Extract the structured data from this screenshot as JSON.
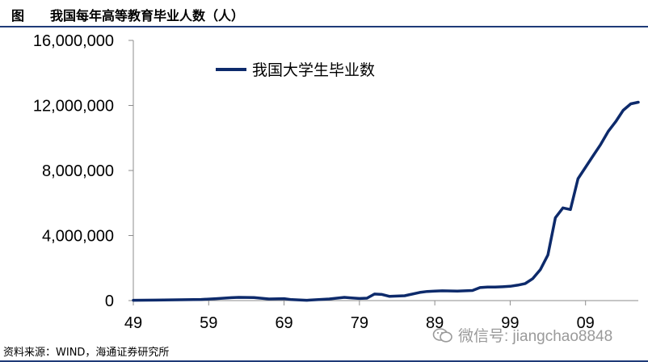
{
  "figure": {
    "label": "图",
    "title": "我国每年高等教育毕业人数（人）"
  },
  "source": "资料来源：WIND，海通证券研究所",
  "watermark": {
    "icon": "wechat-icon",
    "text": "微信号: jiangchao8848"
  },
  "colors": {
    "series": "#0d2a6b",
    "frame": "#1f3b78",
    "axis": "#8c8c8c"
  },
  "chart_data": {
    "type": "line",
    "title": "",
    "xlabel": "",
    "ylabel": "",
    "xlim": [
      1949,
      2016
    ],
    "ylim": [
      0,
      16000000
    ],
    "grid": false,
    "legend_position": "top-left",
    "x_ticks": [
      1949,
      1959,
      1969,
      1979,
      1989,
      1999,
      2009
    ],
    "x_tick_labels": [
      "49",
      "59",
      "69",
      "79",
      "89",
      "99",
      "09"
    ],
    "y_ticks": [
      0,
      4000000,
      8000000,
      12000000,
      16000000
    ],
    "y_tick_labels": [
      "0",
      "4,000,000",
      "8,000,000",
      "12,000,000",
      "16,000,000"
    ],
    "series": [
      {
        "name": "我国大学生毕业数",
        "x": [
          1949,
          1952,
          1955,
          1958,
          1960,
          1962,
          1963,
          1965,
          1967,
          1969,
          1970,
          1972,
          1975,
          1977,
          1978,
          1979,
          1980,
          1981,
          1982,
          1983,
          1985,
          1987,
          1988,
          1989,
          1990,
          1992,
          1994,
          1995,
          1996,
          1997,
          1998,
          1999,
          2000,
          2001,
          2002,
          2003,
          2004,
          2005,
          2006,
          2007,
          2008,
          2009,
          2010,
          2011,
          2012,
          2013,
          2014,
          2015,
          2016
        ],
        "values": [
          20000,
          30000,
          50000,
          70000,
          120000,
          180000,
          200000,
          190000,
          100000,
          120000,
          60000,
          20000,
          100000,
          200000,
          160000,
          130000,
          150000,
          400000,
          380000,
          260000,
          300000,
          500000,
          560000,
          580000,
          600000,
          580000,
          620000,
          800000,
          830000,
          830000,
          850000,
          880000,
          950000,
          1050000,
          1350000,
          1900000,
          2800000,
          5100000,
          5700000,
          5600000,
          7500000,
          8200000,
          8900000,
          9600000,
          10400000,
          11000000,
          11700000,
          12100000,
          12200000
        ]
      }
    ]
  }
}
